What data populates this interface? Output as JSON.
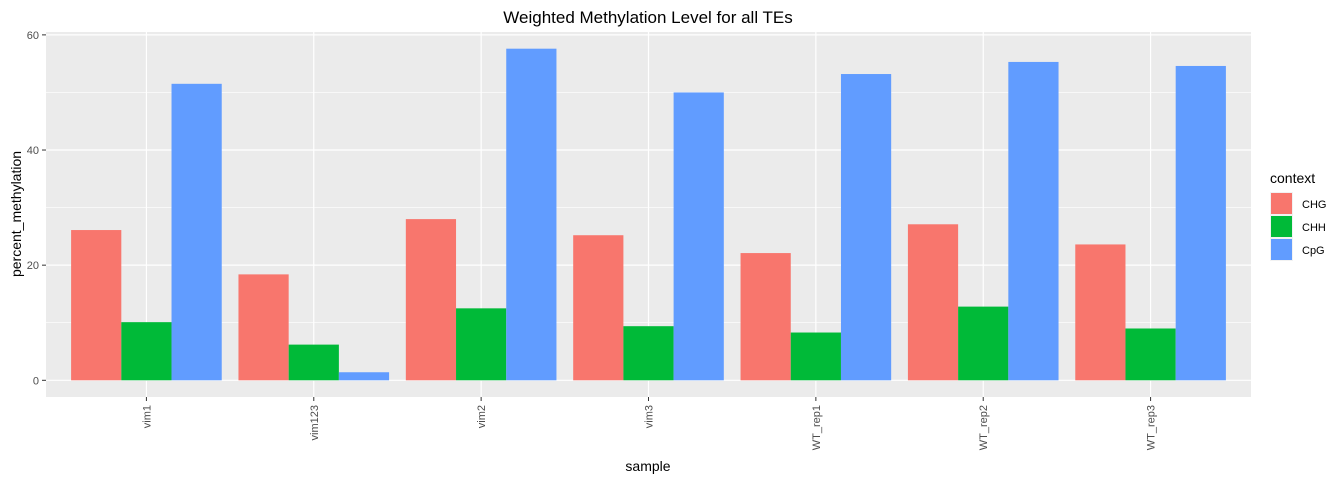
{
  "chart_data": {
    "type": "bar",
    "title": "Weighted Methylation Level for all TEs",
    "xlabel": "sample",
    "ylabel": "percent_methylation",
    "categories": [
      "vim1",
      "vim123",
      "vim2",
      "vim3",
      "WT_rep1",
      "WT_rep2",
      "WT_rep3"
    ],
    "series": [
      {
        "name": "CHG",
        "color": "#F8766D",
        "values": [
          26.1,
          18.4,
          28.0,
          25.2,
          22.1,
          27.1,
          23.6
        ]
      },
      {
        "name": "CHH",
        "color": "#00BA38",
        "values": [
          10.1,
          6.2,
          12.5,
          9.4,
          8.3,
          12.8,
          9.0
        ]
      },
      {
        "name": "CpG",
        "color": "#619CFF",
        "values": [
          51.5,
          1.4,
          57.6,
          50.0,
          53.2,
          55.3,
          54.6
        ]
      }
    ],
    "ylim": [
      -2.9,
      60.5
    ],
    "yticks": [
      0,
      20,
      40,
      60
    ],
    "legend": {
      "title": "context",
      "position": "right"
    },
    "grid": true,
    "x_tick_rotation": "vertical"
  }
}
